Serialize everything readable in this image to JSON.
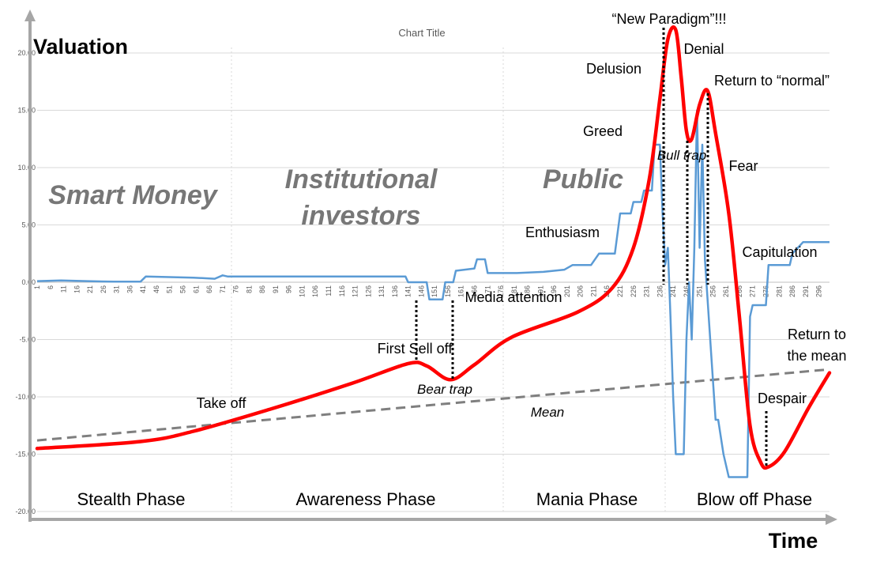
{
  "chart_data": {
    "type": "line",
    "title": "Chart Title",
    "ylabel": "Valuation",
    "xlabel": "Time",
    "ylim": [
      -20,
      22
    ],
    "yticks": [
      "20.00",
      "15.00",
      "10.00",
      "5.00",
      "0.00",
      "-5.00",
      "-10.00",
      "-15.00",
      "-20.00"
    ],
    "xticks": [
      "1",
      "6",
      "11",
      "16",
      "21",
      "26",
      "31",
      "36",
      "41",
      "46",
      "51",
      "56",
      "61",
      "66",
      "71",
      "76",
      "81",
      "86",
      "91",
      "96",
      "101",
      "106",
      "111",
      "116",
      "121",
      "126",
      "131",
      "136",
      "141",
      "146",
      "151",
      "156",
      "161",
      "166",
      "171",
      "176",
      "181",
      "186",
      "191",
      "196",
      "201",
      "206",
      "211",
      "216",
      "221",
      "226",
      "231",
      "236",
      "241",
      "246",
      "251",
      "256",
      "261",
      "266",
      "271",
      "276",
      "281",
      "286",
      "291",
      "296"
    ],
    "series": [
      {
        "color": "#ff0000",
        "points": [
          [
            1,
            -14.5
          ],
          [
            40,
            -13.9
          ],
          [
            60,
            -13
          ],
          [
            90,
            -11
          ],
          [
            120,
            -8.8
          ],
          [
            141,
            -7.1
          ],
          [
            148,
            -7.3
          ],
          [
            157,
            -8.5
          ],
          [
            166,
            -7.2
          ],
          [
            180,
            -4.8
          ],
          [
            205,
            -2.6
          ],
          [
            218,
            -0.5
          ],
          [
            226,
            3
          ],
          [
            232,
            9
          ],
          [
            236,
            16
          ],
          [
            239,
            21.2
          ],
          [
            242,
            22
          ],
          [
            244,
            18
          ],
          [
            246,
            13.2
          ],
          [
            248,
            12.5
          ],
          [
            251,
            15.5
          ],
          [
            254,
            16.7
          ],
          [
            257,
            13
          ],
          [
            262,
            6
          ],
          [
            266,
            -3
          ],
          [
            270,
            -12.5
          ],
          [
            274,
            -15.7
          ],
          [
            277,
            -16.1
          ],
          [
            283,
            -14.8
          ],
          [
            292,
            -11
          ],
          [
            300,
            -7.9
          ]
        ]
      },
      {
        "color": "#5b9bd5",
        "points": [
          [
            1,
            0.1
          ],
          [
            10,
            0.15
          ],
          [
            20,
            0.1
          ],
          [
            30,
            0.05
          ],
          [
            40,
            0.05
          ],
          [
            42,
            0.5
          ],
          [
            60,
            0.4
          ],
          [
            68,
            0.3
          ],
          [
            71,
            0.6
          ],
          [
            73,
            0.5
          ],
          [
            140,
            0.5
          ],
          [
            141,
            0
          ],
          [
            148,
            0
          ],
          [
            149,
            -1.5
          ],
          [
            154,
            -1.5
          ],
          [
            155,
            0
          ],
          [
            158,
            0
          ],
          [
            159,
            1
          ],
          [
            166,
            1.2
          ],
          [
            167,
            2
          ],
          [
            170,
            2
          ],
          [
            171,
            0.8
          ],
          [
            182,
            0.8
          ],
          [
            192,
            0.9
          ],
          [
            200,
            1.1
          ],
          [
            203,
            1.5
          ],
          [
            210,
            1.5
          ],
          [
            213,
            2.5
          ],
          [
            219,
            2.5
          ],
          [
            221,
            6
          ],
          [
            225,
            6
          ],
          [
            226,
            7
          ],
          [
            229,
            7
          ],
          [
            230,
            8
          ],
          [
            233,
            8
          ],
          [
            234,
            12
          ],
          [
            236,
            12
          ],
          [
            237,
            6
          ],
          [
            238,
            1.5
          ],
          [
            239,
            3
          ],
          [
            240,
            -3
          ],
          [
            241,
            -10
          ],
          [
            242,
            -15
          ],
          [
            245,
            -15
          ],
          [
            246,
            -5
          ],
          [
            247,
            0
          ],
          [
            248,
            -5
          ],
          [
            249,
            3
          ],
          [
            250,
            15
          ],
          [
            251,
            3
          ],
          [
            252,
            12
          ],
          [
            253,
            2
          ],
          [
            255,
            -5
          ],
          [
            257,
            -12
          ],
          [
            258,
            -12
          ],
          [
            260,
            -15
          ],
          [
            262,
            -17
          ],
          [
            269,
            -17
          ],
          [
            270,
            -3
          ],
          [
            271,
            -2
          ],
          [
            276,
            -2
          ],
          [
            277,
            1.5
          ],
          [
            285,
            1.5
          ],
          [
            286,
            2.5
          ],
          [
            290,
            3.5
          ],
          [
            300,
            3.5
          ]
        ]
      },
      {
        "color": "#7f7f7f",
        "dash": true,
        "points": [
          [
            1,
            -13.8
          ],
          [
            300,
            -7.6
          ]
        ]
      }
    ],
    "phases": [
      "Stealth Phase",
      "Awareness Phase",
      "Mania Phase",
      "Blow off Phase"
    ],
    "big_labels": [
      "Smart Money",
      "Institutional",
      "investors",
      "Public"
    ],
    "annotations": [
      "Take off",
      "First Sell off",
      "Bear trap",
      "Media attention",
      "Mean",
      "Enthusiasm",
      "Greed",
      "Delusion",
      "“New Paradigm”!!!",
      "Denial",
      "Return to “normal”",
      "Bull trap",
      "Fear",
      "Capitulation",
      "Return to",
      "the mean",
      "Despair"
    ]
  }
}
